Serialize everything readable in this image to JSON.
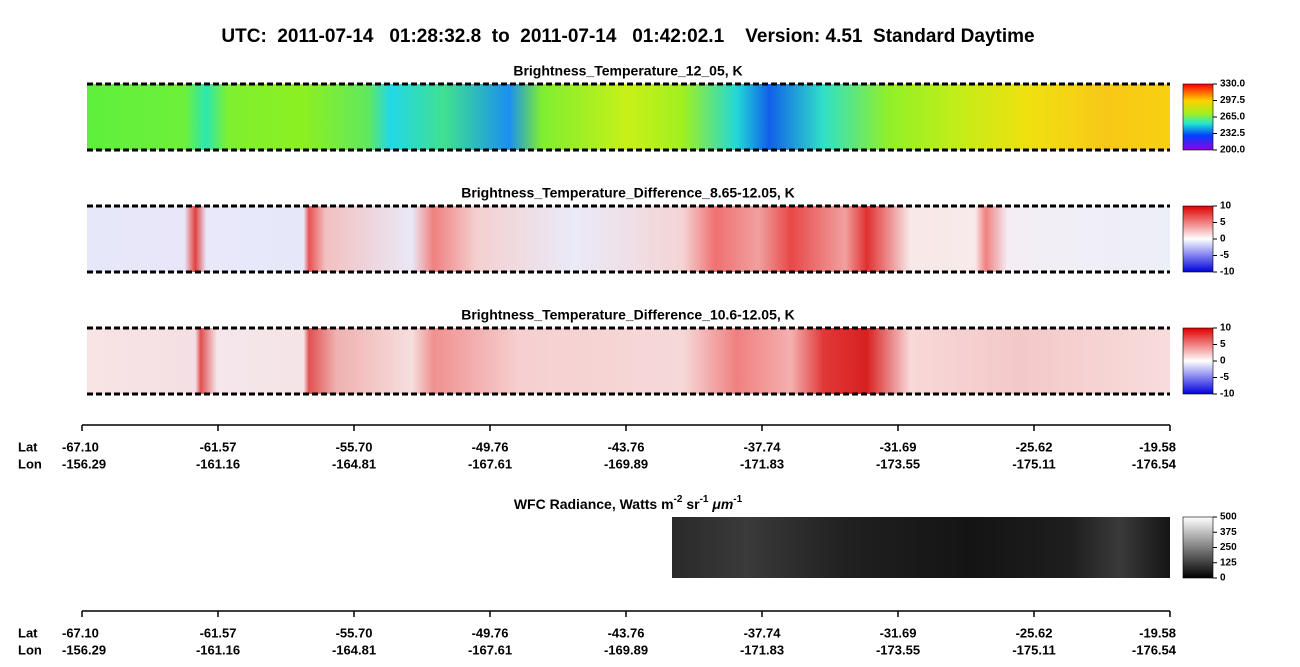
{
  "header": {
    "title": "UTC:  2011-07-14   01:28:32.8  to  2011-07-14   01:42:02.1    Version: 4.51  Standard Daytime"
  },
  "panels": [
    {
      "title": "Brightness_Temperature_12_05, K",
      "colorbar": [
        "330.0",
        "297.5",
        "265.0",
        "232.5",
        "200.0"
      ]
    },
    {
      "title": "Brightness_Temperature_Difference_8.65-12.05, K",
      "colorbar": [
        "10",
        "5",
        "0",
        "-5",
        "-10"
      ]
    },
    {
      "title": "Brightness_Temperature_Difference_10.6-12.05, K",
      "colorbar": [
        "10",
        "5",
        "0",
        "-5",
        "-10"
      ]
    },
    {
      "title_parts": [
        "WFC Radiance, Watts m",
        "-2",
        " sr",
        "-1",
        " μm",
        "-1"
      ],
      "colorbar": [
        "500",
        "375",
        "250",
        "125",
        "0"
      ]
    }
  ],
  "axes": [
    {
      "row_labels": [
        "Lat",
        "Lon"
      ],
      "lat": [
        "-67.10",
        "-61.57",
        "-55.70",
        "-49.76",
        "-43.76",
        "-37.74",
        "-31.69",
        "-25.62",
        "-19.58"
      ],
      "lon": [
        "-156.29",
        "-161.16",
        "-164.81",
        "-167.61",
        "-169.89",
        "-171.83",
        "-173.55",
        "-175.11",
        "-176.54"
      ]
    },
    {
      "row_labels": [
        "Lat",
        "Lon"
      ],
      "lat": [
        "-67.10",
        "-61.57",
        "-55.70",
        "-49.76",
        "-43.76",
        "-37.74",
        "-31.69",
        "-25.62",
        "-19.58"
      ],
      "lon": [
        "-156.29",
        "-161.16",
        "-164.81",
        "-167.61",
        "-169.89",
        "-171.83",
        "-173.55",
        "-175.11",
        "-176.54"
      ]
    }
  ]
}
